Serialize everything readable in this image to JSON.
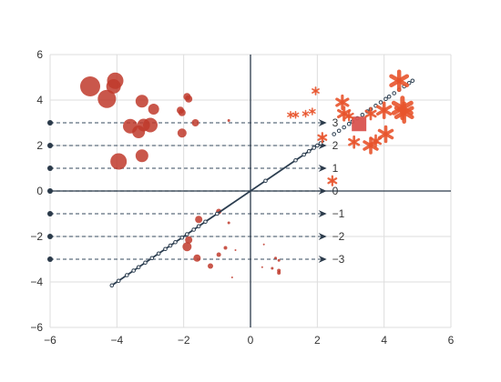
{
  "chart_data": {
    "type": "scatter",
    "xlim": [
      -6,
      6
    ],
    "ylim": [
      -6,
      6
    ],
    "x_ticks": [
      "−6",
      "−4",
      "−2",
      "0",
      "2",
      "4",
      "6"
    ],
    "y_ticks": [
      "−6",
      "−4",
      "−2",
      "0",
      "2",
      "4",
      "6"
    ],
    "grid": true,
    "colors": {
      "axis_line": "#2b3a4a",
      "grid": "#dddddd",
      "circle": "#c0392b",
      "star": "#e8542c",
      "line": "#2c3e50",
      "square": "#d9534f"
    },
    "levels": [
      {
        "y": 3,
        "label": "3"
      },
      {
        "y": 2,
        "label": "2"
      },
      {
        "y": 1,
        "label": "1"
      },
      {
        "y": 0,
        "label": "0"
      },
      {
        "y": -1,
        "label": "−1"
      },
      {
        "y": -2,
        "label": "−2"
      },
      {
        "y": -3,
        "label": "−3"
      }
    ],
    "level_x_range": [
      -6,
      2.2
    ],
    "diagonal_line": {
      "x": [
        -4.2,
        2.2
      ]
    },
    "diagonal_dots": [
      -4.15,
      -3.95,
      -3.7,
      -3.5,
      -3.35,
      -3.15,
      -2.95,
      -2.75,
      -2.55,
      -2.4,
      -2.25,
      -2.05,
      -1.9,
      -1.7,
      -1.55,
      -1.35,
      -1.0,
      0.45,
      1.35,
      1.6,
      1.75,
      1.9,
      2.0,
      2.1,
      2.5,
      2.65,
      2.8,
      2.95,
      3.05,
      3.2,
      3.35,
      3.5,
      3.6,
      3.75,
      3.9,
      4.05,
      4.15,
      4.3,
      4.45,
      4.6,
      4.75,
      4.85
    ],
    "circles": [
      {
        "x": -4.8,
        "y": 4.6,
        "s": 11
      },
      {
        "x": -4.3,
        "y": 4.05,
        "s": 10
      },
      {
        "x": -4.05,
        "y": 4.85,
        "s": 9
      },
      {
        "x": -4.1,
        "y": 4.6,
        "s": 8
      },
      {
        "x": -3.25,
        "y": 3.95,
        "s": 7
      },
      {
        "x": -2.9,
        "y": 3.6,
        "s": 6
      },
      {
        "x": -3.6,
        "y": 2.85,
        "s": 8
      },
      {
        "x": -3.2,
        "y": 2.9,
        "s": 7
      },
      {
        "x": -3.0,
        "y": 2.9,
        "s": 8
      },
      {
        "x": -3.35,
        "y": 2.6,
        "s": 7
      },
      {
        "x": -3.95,
        "y": 1.3,
        "s": 9
      },
      {
        "x": -3.25,
        "y": 1.55,
        "s": 7
      },
      {
        "x": -1.9,
        "y": 4.15,
        "s": 4
      },
      {
        "x": -1.85,
        "y": 4.05,
        "s": 4
      },
      {
        "x": -2.1,
        "y": 3.55,
        "s": 4
      },
      {
        "x": -2.05,
        "y": 3.45,
        "s": 4
      },
      {
        "x": -1.65,
        "y": 3.0,
        "s": 4
      },
      {
        "x": -2.05,
        "y": 2.55,
        "s": 5
      },
      {
        "x": -0.65,
        "y": 3.1,
        "s": 1.5
      },
      {
        "x": -0.95,
        "y": -0.9,
        "s": 3
      },
      {
        "x": -1.55,
        "y": -1.25,
        "s": 4
      },
      {
        "x": -0.65,
        "y": -1.4,
        "s": 1.5
      },
      {
        "x": -1.85,
        "y": -2.15,
        "s": 4
      },
      {
        "x": -1.9,
        "y": -2.45,
        "s": 5
      },
      {
        "x": -0.75,
        "y": -2.5,
        "s": 2
      },
      {
        "x": -0.45,
        "y": -2.6,
        "s": 1
      },
      {
        "x": -0.95,
        "y": -2.8,
        "s": 2.5
      },
      {
        "x": -1.6,
        "y": -2.95,
        "s": 4
      },
      {
        "x": -1.2,
        "y": -3.3,
        "s": 3
      },
      {
        "x": -0.55,
        "y": -3.8,
        "s": 1
      },
      {
        "x": 0.4,
        "y": -2.35,
        "s": 1
      },
      {
        "x": 0.75,
        "y": -2.95,
        "s": 1.5
      },
      {
        "x": 0.85,
        "y": -3.05,
        "s": 1.5
      },
      {
        "x": 0.35,
        "y": -3.35,
        "s": 1
      },
      {
        "x": 0.65,
        "y": -3.4,
        "s": 1.5
      },
      {
        "x": 0.85,
        "y": -3.5,
        "s": 2
      },
      {
        "x": 0.85,
        "y": -3.6,
        "s": 2
      }
    ],
    "stars": [
      {
        "x": 4.45,
        "y": 4.85,
        "s": 10
      },
      {
        "x": 4.55,
        "y": 3.65,
        "s": 11
      },
      {
        "x": 4.6,
        "y": 3.45,
        "s": 10
      },
      {
        "x": 4.0,
        "y": 3.55,
        "s": 8
      },
      {
        "x": 3.6,
        "y": 3.4,
        "s": 6
      },
      {
        "x": 2.75,
        "y": 3.9,
        "s": 7
      },
      {
        "x": 2.8,
        "y": 3.4,
        "s": 7
      },
      {
        "x": 2.95,
        "y": 3.3,
        "s": 5
      },
      {
        "x": 1.95,
        "y": 4.4,
        "s": 4
      },
      {
        "x": 1.2,
        "y": 3.35,
        "s": 3.5
      },
      {
        "x": 1.35,
        "y": 3.35,
        "s": 3.5
      },
      {
        "x": 1.65,
        "y": 3.4,
        "s": 3.5
      },
      {
        "x": 1.85,
        "y": 3.5,
        "s": 3.5
      },
      {
        "x": 2.15,
        "y": 2.35,
        "s": 5
      },
      {
        "x": 3.1,
        "y": 2.15,
        "s": 6
      },
      {
        "x": 3.6,
        "y": 2.0,
        "s": 8
      },
      {
        "x": 3.75,
        "y": 2.2,
        "s": 6
      },
      {
        "x": 4.05,
        "y": 2.5,
        "s": 8
      },
      {
        "x": 2.45,
        "y": 0.45,
        "s": 5
      }
    ],
    "square": {
      "x": 3.25,
      "y": 2.95,
      "s": 8
    }
  }
}
